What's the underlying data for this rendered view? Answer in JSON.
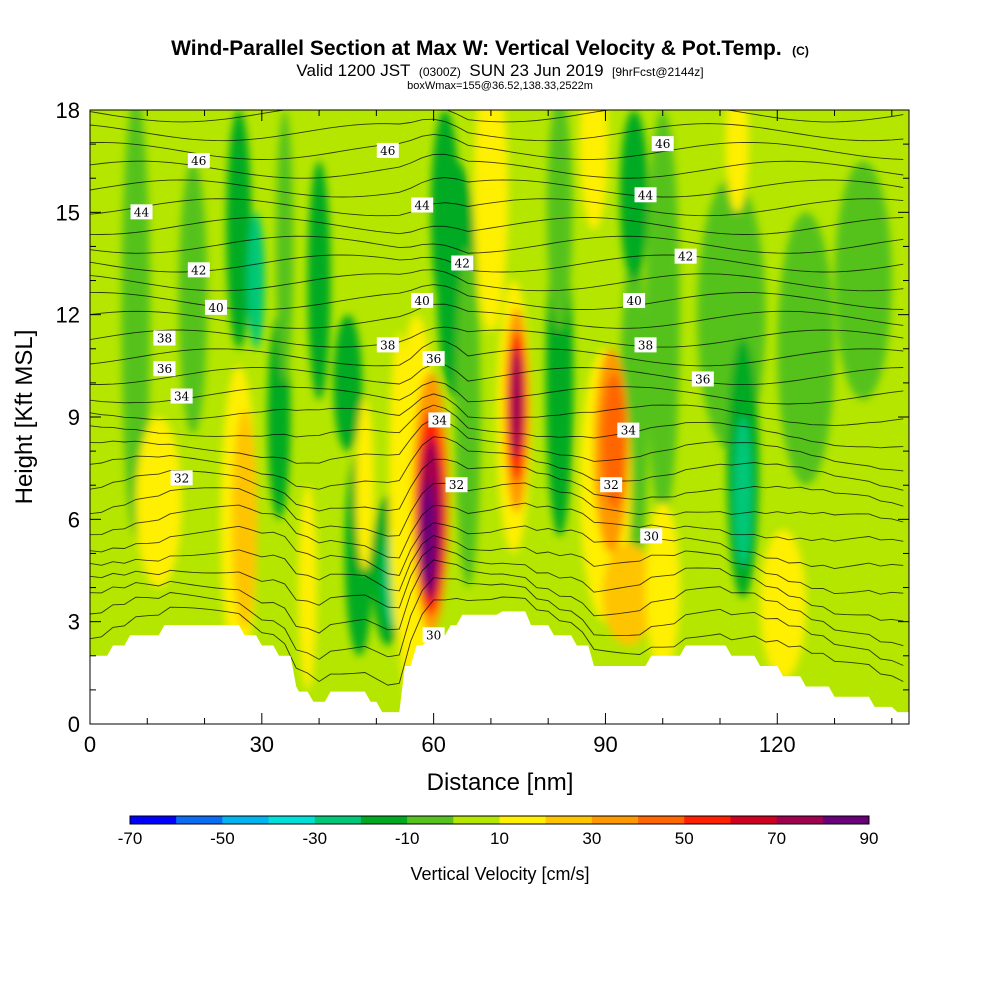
{
  "header": {
    "title": "Wind-Parallel Section at Max W: Vertical Velocity & Pot.Temp.",
    "copyright": "(C)",
    "valid_prefix": "Valid 1200 JST",
    "valid_utc": "(0300Z)",
    "valid_date": "SUN 23 Jun 2019",
    "forecast": "[9hrFcst@2144z]",
    "box_info": "boxWmax=155@36.52,138.33,2522m"
  },
  "colorbar": {
    "label": "Vertical Velocity [cm/s]",
    "ticks": [
      "-70",
      "-50",
      "-30",
      "-10",
      "10",
      "30",
      "50",
      "70",
      "90"
    ],
    "levels": [
      -70,
      -60,
      -50,
      -40,
      -30,
      -20,
      -10,
      0,
      10,
      20,
      30,
      40,
      50,
      60,
      70,
      80,
      90
    ],
    "colors": [
      "#0000ff",
      "#0a6cf5",
      "#00b4f0",
      "#00e0d8",
      "#00c878",
      "#00aa20",
      "#55c21e",
      "#b4e600",
      "#ffef00",
      "#ffc400",
      "#ff9900",
      "#ff6600",
      "#ff2000",
      "#d00020",
      "#a00050",
      "#6a0078"
    ]
  },
  "chart_data": {
    "type": "contour",
    "title": "Wind-Parallel Section at Max W: Vertical Velocity & Pot.Temp.",
    "xlabel": "Distance [nm]",
    "ylabel": "Height [Kft MSL]",
    "xlim": [
      0,
      143
    ],
    "ylim": [
      0,
      18
    ],
    "x_ticks": [
      "0",
      "30",
      "60",
      "90",
      "120"
    ],
    "x_tick_values": [
      0,
      30,
      60,
      90,
      120
    ],
    "y_ticks": [
      "0",
      "3",
      "6",
      "9",
      "12",
      "15",
      "18"
    ],
    "y_tick_values": [
      0,
      3,
      6,
      9,
      12,
      15,
      18
    ],
    "units": "cm/s",
    "max_w": 155,
    "terrain_kft": [
      [
        0,
        2.0
      ],
      [
        3,
        2.0
      ],
      [
        4,
        2.3
      ],
      [
        6,
        2.3
      ],
      [
        7,
        2.6
      ],
      [
        12,
        2.6
      ],
      [
        13,
        2.9
      ],
      [
        21,
        2.9
      ],
      [
        26,
        2.9
      ],
      [
        27,
        2.6
      ],
      [
        29,
        2.6
      ],
      [
        30,
        2.3
      ],
      [
        32,
        2.3
      ],
      [
        33,
        2.0
      ],
      [
        35,
        2.0
      ],
      [
        36,
        1.1
      ],
      [
        36.5,
        0.95
      ],
      [
        38,
        0.95
      ],
      [
        39,
        0.65
      ],
      [
        41,
        0.65
      ],
      [
        42,
        0.95
      ],
      [
        48,
        0.95
      ],
      [
        49,
        0.65
      ],
      [
        50,
        0.65
      ],
      [
        51,
        0.35
      ],
      [
        54,
        0.35
      ],
      [
        55,
        1.7
      ],
      [
        56,
        1.7
      ],
      [
        57,
        2.3
      ],
      [
        58,
        2.3
      ],
      [
        60,
        2.6
      ],
      [
        62,
        2.6
      ],
      [
        63,
        2.9
      ],
      [
        64,
        2.9
      ],
      [
        65,
        3.2
      ],
      [
        71,
        3.2
      ],
      [
        72,
        3.3
      ],
      [
        76,
        3.3
      ],
      [
        77,
        2.9
      ],
      [
        80,
        2.9
      ],
      [
        81,
        2.6
      ],
      [
        84,
        2.6
      ],
      [
        85,
        2.3
      ],
      [
        87,
        2.3
      ],
      [
        88,
        1.7
      ],
      [
        97,
        1.7
      ],
      [
        98,
        2.0
      ],
      [
        103,
        2.0
      ],
      [
        104,
        2.3
      ],
      [
        111,
        2.3
      ],
      [
        112,
        2.0
      ],
      [
        116,
        2.0
      ],
      [
        117,
        1.7
      ],
      [
        120,
        1.7
      ],
      [
        121,
        1.4
      ],
      [
        124,
        1.4
      ],
      [
        125,
        1.1
      ],
      [
        129,
        1.1
      ],
      [
        130,
        0.8
      ],
      [
        136,
        0.8
      ],
      [
        137,
        0.5
      ],
      [
        140,
        0.5
      ],
      [
        141,
        0.35
      ],
      [
        143,
        0.35
      ]
    ],
    "theta_labels": [
      {
        "v": "46",
        "x": 19,
        "y": 16.5
      },
      {
        "v": "46",
        "x": 52,
        "y": 16.8
      },
      {
        "v": "46",
        "x": 100,
        "y": 17.0
      },
      {
        "v": "44",
        "x": 9,
        "y": 15.0
      },
      {
        "v": "44",
        "x": 58,
        "y": 15.2
      },
      {
        "v": "44",
        "x": 97,
        "y": 15.5
      },
      {
        "v": "42",
        "x": 19,
        "y": 13.3
      },
      {
        "v": "42",
        "x": 65,
        "y": 13.5
      },
      {
        "v": "42",
        "x": 104,
        "y": 13.7
      },
      {
        "v": "40",
        "x": 22,
        "y": 12.2
      },
      {
        "v": "40",
        "x": 58,
        "y": 12.4
      },
      {
        "v": "40",
        "x": 95,
        "y": 12.4
      },
      {
        "v": "38",
        "x": 13,
        "y": 11.3
      },
      {
        "v": "38",
        "x": 52,
        "y": 11.1
      },
      {
        "v": "38",
        "x": 97,
        "y": 11.1
      },
      {
        "v": "36",
        "x": 13,
        "y": 10.4
      },
      {
        "v": "36",
        "x": 60,
        "y": 10.7
      },
      {
        "v": "36",
        "x": 107,
        "y": 10.1
      },
      {
        "v": "34",
        "x": 16,
        "y": 9.6
      },
      {
        "v": "34",
        "x": 61,
        "y": 8.9
      },
      {
        "v": "34",
        "x": 94,
        "y": 8.6
      },
      {
        "v": "32",
        "x": 16,
        "y": 7.2
      },
      {
        "v": "32",
        "x": 64,
        "y": 7.0
      },
      {
        "v": "32",
        "x": 91,
        "y": 7.0
      },
      {
        "v": "30",
        "x": 98,
        "y": 5.5
      },
      {
        "v": "30",
        "x": 60,
        "y": 2.6
      }
    ]
  }
}
